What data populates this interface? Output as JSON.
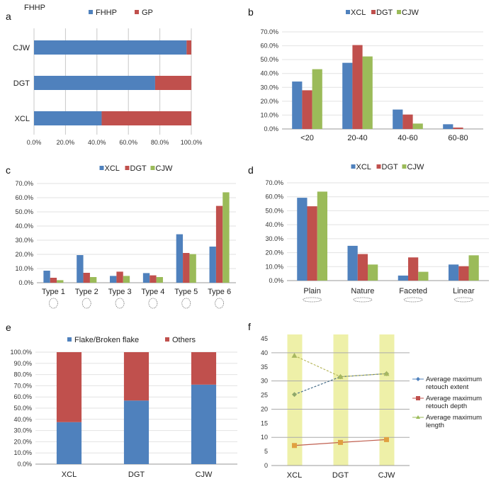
{
  "colors": {
    "blue": "#4f81bd",
    "red": "#c0504d",
    "green": "#9bbb59",
    "band": "#eef0a8",
    "grid": "#c8c8c8",
    "orange_marker": "#e0a040"
  },
  "chart_data": [
    {
      "id": "a",
      "panel_label": "a",
      "type": "bar",
      "orientation": "horizontal",
      "stacked": true,
      "title": "FHHP",
      "categories": [
        "CJW",
        "DGT",
        "XCL"
      ],
      "series": [
        {
          "name": "FHHP",
          "values": [
            97,
            77,
            43
          ]
        },
        {
          "name": "GP",
          "values": [
            3,
            23,
            57
          ]
        }
      ],
      "xlim": [
        0,
        100
      ],
      "xticks": [
        "0.0%",
        "20.0%",
        "40.0%",
        "60.0%",
        "80.0%",
        "100.0%"
      ],
      "legend": "top",
      "grid": true
    },
    {
      "id": "b",
      "panel_label": "b",
      "type": "bar",
      "categories": [
        "<20",
        "20-40",
        "40-60",
        "60-80"
      ],
      "series": [
        {
          "name": "XCL",
          "values": [
            34.2,
            47.7,
            14.0,
            3.4
          ]
        },
        {
          "name": "DGT",
          "values": [
            27.9,
            60.5,
            10.4,
            1.0
          ]
        },
        {
          "name": "CJW",
          "values": [
            43.1,
            52.3,
            3.9,
            0.0
          ]
        }
      ],
      "ylim": [
        0,
        70
      ],
      "yticks": [
        "0.0%",
        "10.0%",
        "20.0%",
        "30.0%",
        "40.0%",
        "50.0%",
        "60.0%",
        "70.0%"
      ],
      "legend": "top",
      "grid": true
    },
    {
      "id": "c",
      "panel_label": "c",
      "type": "bar",
      "categories": [
        "Type 1",
        "Type 2",
        "Type 3",
        "Type 4",
        "Type 5",
        "Type 6"
      ],
      "series": [
        {
          "name": "XCL",
          "values": [
            8.5,
            19.5,
            4.8,
            6.8,
            34.2,
            25.5
          ]
        },
        {
          "name": "DGT",
          "values": [
            3.5,
            7.0,
            7.8,
            5.2,
            21.0,
            54.2
          ]
        },
        {
          "name": "CJW",
          "values": [
            1.8,
            4.0,
            4.8,
            4.0,
            20.2,
            63.8
          ]
        }
      ],
      "ylim": [
        0,
        70
      ],
      "yticks": [
        "0.0%",
        "10.0%",
        "20.0%",
        "30.0%",
        "40.0%",
        "50.0%",
        "60.0%",
        "70.0%"
      ],
      "legend": "top",
      "grid": true
    },
    {
      "id": "d",
      "panel_label": "d",
      "type": "bar",
      "categories": [
        "Plain",
        "Nature",
        "Faceted",
        "Linear"
      ],
      "series": [
        {
          "name": "XCL",
          "values": [
            59.3,
            24.9,
            3.6,
            11.5
          ]
        },
        {
          "name": "DGT",
          "values": [
            53.2,
            19.0,
            16.6,
            10.3
          ]
        },
        {
          "name": "CJW",
          "values": [
            63.7,
            11.5,
            6.3,
            18.1
          ]
        }
      ],
      "ylim": [
        0,
        70
      ],
      "yticks": [
        "0.0%",
        "10.0%",
        "20.0%",
        "30.0%",
        "40.0%",
        "50.0%",
        "60.0%",
        "70.0%"
      ],
      "legend": "top",
      "grid": true
    },
    {
      "id": "e",
      "panel_label": "e",
      "type": "bar",
      "stacked": true,
      "categories": [
        "XCL",
        "DGT",
        "CJW"
      ],
      "series": [
        {
          "name": "Flake/Broken flake",
          "values": [
            37.5,
            56.8,
            71.0
          ]
        },
        {
          "name": "Others",
          "values": [
            62.5,
            43.2,
            29.0
          ]
        }
      ],
      "ylim": [
        0,
        100
      ],
      "yticks": [
        "0.0%",
        "10.0%",
        "20.0%",
        "30.0%",
        "40.0%",
        "50.0%",
        "60.0%",
        "70.0%",
        "80.0%",
        "90.0%",
        "100.0%"
      ],
      "legend": "top",
      "grid": true
    },
    {
      "id": "f",
      "panel_label": "f",
      "type": "line",
      "categories": [
        "XCL",
        "DGT",
        "CJW"
      ],
      "series": [
        {
          "name": "Average maximum retouch extent",
          "values": [
            25.2,
            31.5,
            32.6
          ],
          "marker": "diamond"
        },
        {
          "name": "Average maximum retouch depth",
          "values": [
            7.1,
            8.2,
            9.2
          ],
          "marker": "square"
        },
        {
          "name": "Average maximum length",
          "values": [
            39.0,
            31.5,
            32.6
          ],
          "marker": "triangle"
        }
      ],
      "ylim": [
        0,
        45
      ],
      "yticks": [
        "0",
        "5",
        "10",
        "15",
        "20",
        "25",
        "30",
        "35",
        "40",
        "45"
      ],
      "legend": "right",
      "grid": true
    }
  ]
}
